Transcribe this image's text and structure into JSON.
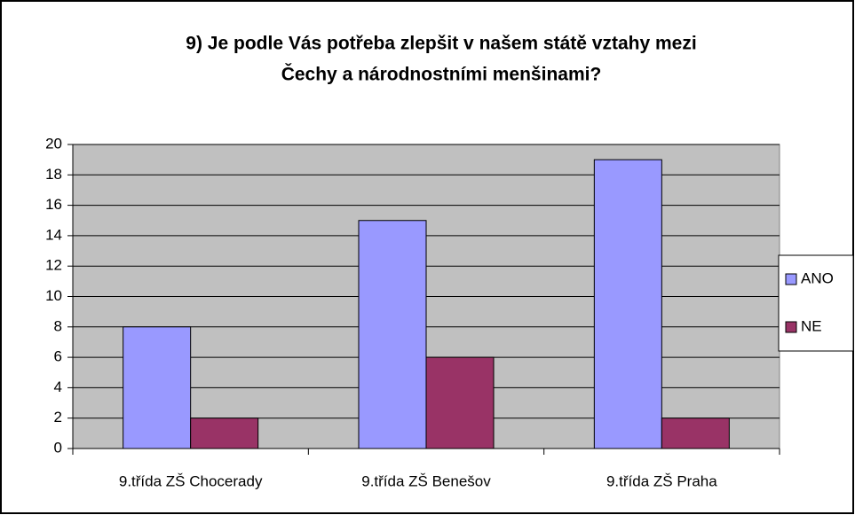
{
  "chart_data": {
    "type": "bar",
    "title": [
      "9) Je podle Vás potřeba zlepšit v našem státě vztahy mezi",
      "Čechy a národnostními menšinami?"
    ],
    "categories": [
      "9.třída ZŠ Chocerady",
      "9.třída ZŠ Benešov",
      "9.třída ZŠ Praha"
    ],
    "series": [
      {
        "name": "ANO",
        "color": "#9999ff",
        "values": [
          8,
          15,
          19
        ]
      },
      {
        "name": "NE",
        "color": "#993366",
        "values": [
          2,
          6,
          2
        ]
      }
    ],
    "ylim": [
      0,
      20
    ],
    "yticks": [
      0,
      2,
      4,
      6,
      8,
      10,
      12,
      14,
      16,
      18,
      20
    ],
    "grid": true,
    "plot_background": "#c0c0c0",
    "legend": "right"
  }
}
